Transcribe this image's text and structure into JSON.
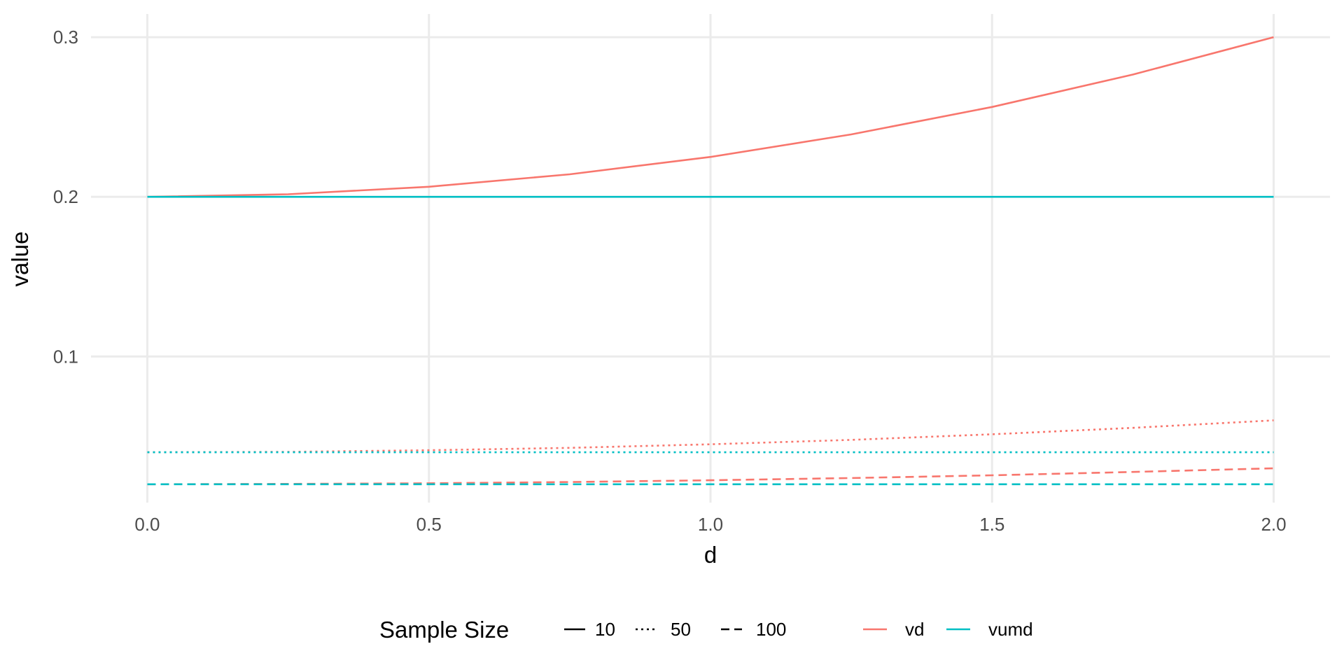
{
  "chart_data": {
    "type": "line",
    "xlabel": "d",
    "ylabel": "value",
    "xlim": [
      -0.1,
      2.1
    ],
    "ylim": [
      0.0085,
      0.3145
    ],
    "x_ticks": [
      0.0,
      0.5,
      1.0,
      1.5,
      2.0
    ],
    "x_tick_labels": [
      "0.0",
      "0.5",
      "1.0",
      "1.5",
      "2.0"
    ],
    "y_ticks": [
      0.1,
      0.2,
      0.3
    ],
    "y_tick_labels": [
      "0.1",
      "0.2",
      "0.3"
    ],
    "grid": true,
    "legend_position": "bottom",
    "colors": {
      "vd": "#F8766D",
      "vumd": "#00BFC4",
      "grid": "#EBEBEB"
    },
    "legend": {
      "linetype_title": "Sample Size",
      "linetype_entries": [
        {
          "label": "10",
          "dash": "solid"
        },
        {
          "label": "50",
          "dash": "dotted"
        },
        {
          "label": "100",
          "dash": "dashed"
        }
      ],
      "color_entries": [
        {
          "label": "vd",
          "color": "#F8766D"
        },
        {
          "label": "vumd",
          "color": "#00BFC4"
        }
      ]
    },
    "series": [
      {
        "name": "vd",
        "sample_size": "10",
        "dash": "solid",
        "color": "#F8766D",
        "x": [
          0.0,
          0.25,
          0.5,
          0.75,
          1.0,
          1.25,
          1.5,
          1.75,
          2.0
        ],
        "y": [
          0.2,
          0.2016,
          0.2063,
          0.2141,
          0.225,
          0.2391,
          0.2563,
          0.2766,
          0.3
        ]
      },
      {
        "name": "vumd",
        "sample_size": "10",
        "dash": "solid",
        "color": "#00BFC4",
        "x": [
          0.0,
          2.0
        ],
        "y": [
          0.2,
          0.2
        ]
      },
      {
        "name": "vd",
        "sample_size": "50",
        "dash": "dotted",
        "color": "#F8766D",
        "x": [
          0.0,
          0.25,
          0.5,
          0.75,
          1.0,
          1.25,
          1.5,
          1.75,
          2.0
        ],
        "y": [
          0.04,
          0.0403,
          0.0413,
          0.0428,
          0.045,
          0.0478,
          0.0513,
          0.0553,
          0.06
        ]
      },
      {
        "name": "vumd",
        "sample_size": "50",
        "dash": "dotted",
        "color": "#00BFC4",
        "x": [
          0.0,
          2.0
        ],
        "y": [
          0.04,
          0.04
        ]
      },
      {
        "name": "vd",
        "sample_size": "100",
        "dash": "dashed",
        "color": "#F8766D",
        "x": [
          0.0,
          0.25,
          0.5,
          0.75,
          1.0,
          1.25,
          1.5,
          1.75,
          2.0
        ],
        "y": [
          0.02,
          0.0202,
          0.0206,
          0.0214,
          0.0225,
          0.0239,
          0.0256,
          0.0277,
          0.03
        ]
      },
      {
        "name": "vumd",
        "sample_size": "100",
        "dash": "dashed",
        "color": "#00BFC4",
        "x": [
          0.0,
          2.0
        ],
        "y": [
          0.02,
          0.02
        ]
      }
    ]
  }
}
